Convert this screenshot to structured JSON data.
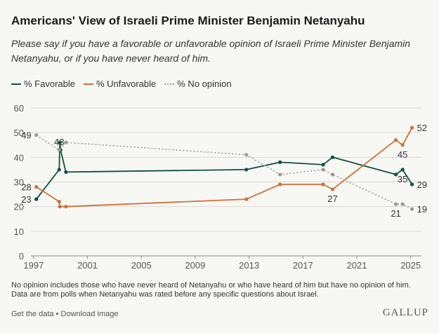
{
  "header": {
    "title": "Americans' View of Israeli Prime Minister Benjamin Netanyahu",
    "subtitle": "Please say if you have a favorable or unfavorable opinion of Israeli Prime Minister Benjamin Netanyahu, or if you have never heard of him."
  },
  "legend": {
    "favorable": "% Favorable",
    "unfavorable": "% Unfavorable",
    "no_opinion": "% No opinion"
  },
  "footer": {
    "note_line1": "No opinion includes those who have never heard of Netanyahu or who have heard of him but have no opinion of him.",
    "note_line2": "Data are from polls when Netanyahu was rated before any specific questions about Israel.",
    "get_data": "Get the data",
    "separator": "•",
    "download": "Download image",
    "brand": "GALLUP"
  },
  "colors": {
    "favorable": "#0f5045",
    "unfavorable": "#d0703b",
    "no_opinion": "#999999",
    "grid": "#d9d9d4",
    "axis_text": "#555555"
  },
  "chart_data": {
    "type": "line",
    "title": "Americans' View of Israeli Prime Minister Benjamin Netanyahu",
    "xlabel": "",
    "ylabel": "",
    "xlim": [
      1996.8,
      2025.8
    ],
    "ylim": [
      0,
      60
    ],
    "grid": true,
    "legend_position": "top-left",
    "x_ticks": [
      1997,
      2001,
      2005,
      2009,
      2013,
      2017,
      2021,
      2025
    ],
    "y_ticks": [
      0,
      10,
      20,
      30,
      40,
      50,
      60
    ],
    "series": [
      {
        "name": "% Favorable",
        "key": "favorable",
        "style": "solid",
        "x": [
          1997.2,
          1998.9,
          1998.95,
          1999.0,
          1999.4,
          2012.8,
          2015.3,
          2018.5,
          2019.2,
          2023.9,
          2024.4,
          2025.1
        ],
        "y": [
          23,
          35,
          46,
          43,
          34,
          35,
          38,
          37,
          40,
          33,
          35,
          29
        ]
      },
      {
        "name": "% Unfavorable",
        "key": "unfavorable",
        "style": "solid",
        "x": [
          1997.2,
          1998.9,
          1998.95,
          1999.4,
          2012.8,
          2015.3,
          2018.5,
          2019.2,
          2023.9,
          2024.4,
          2025.1
        ],
        "y": [
          28,
          22,
          20,
          20,
          23,
          29,
          29,
          27,
          47,
          45,
          52
        ]
      },
      {
        "name": "% No opinion",
        "key": "no_opinion",
        "style": "dotted",
        "x": [
          1997.2,
          1998.9,
          1999.4,
          2012.8,
          2015.3,
          2018.5,
          2019.2,
          2023.9,
          2024.4,
          2025.1
        ],
        "y": [
          49,
          43,
          46,
          41,
          33,
          35,
          33,
          21,
          21,
          19
        ]
      }
    ],
    "data_labels": [
      {
        "series": "no_opinion",
        "x": 1997.2,
        "y": 49,
        "text": "49",
        "pos": "left"
      },
      {
        "series": "no_opinion",
        "x": 1998.9,
        "y": 43,
        "text": "43",
        "pos": "above"
      },
      {
        "series": "unfavorable",
        "x": 1997.2,
        "y": 28,
        "text": "28",
        "pos": "left"
      },
      {
        "series": "favorable",
        "x": 1997.2,
        "y": 23,
        "text": "23",
        "pos": "left"
      },
      {
        "series": "unfavorable",
        "x": 2019.2,
        "y": 27,
        "text": "27",
        "pos": "below"
      },
      {
        "series": "unfavorable",
        "x": 2025.1,
        "y": 52,
        "text": "52",
        "pos": "right"
      },
      {
        "series": "unfavorable",
        "x": 2024.4,
        "y": 45,
        "text": "45",
        "pos": "below"
      },
      {
        "series": "favorable",
        "x": 2024.4,
        "y": 35,
        "text": "35",
        "pos": "below"
      },
      {
        "series": "favorable",
        "x": 2025.1,
        "y": 29,
        "text": "29",
        "pos": "right"
      },
      {
        "series": "no_opinion",
        "x": 2023.9,
        "y": 21,
        "text": "21",
        "pos": "below"
      },
      {
        "series": "no_opinion",
        "x": 2025.1,
        "y": 19,
        "text": "19",
        "pos": "right"
      }
    ]
  }
}
